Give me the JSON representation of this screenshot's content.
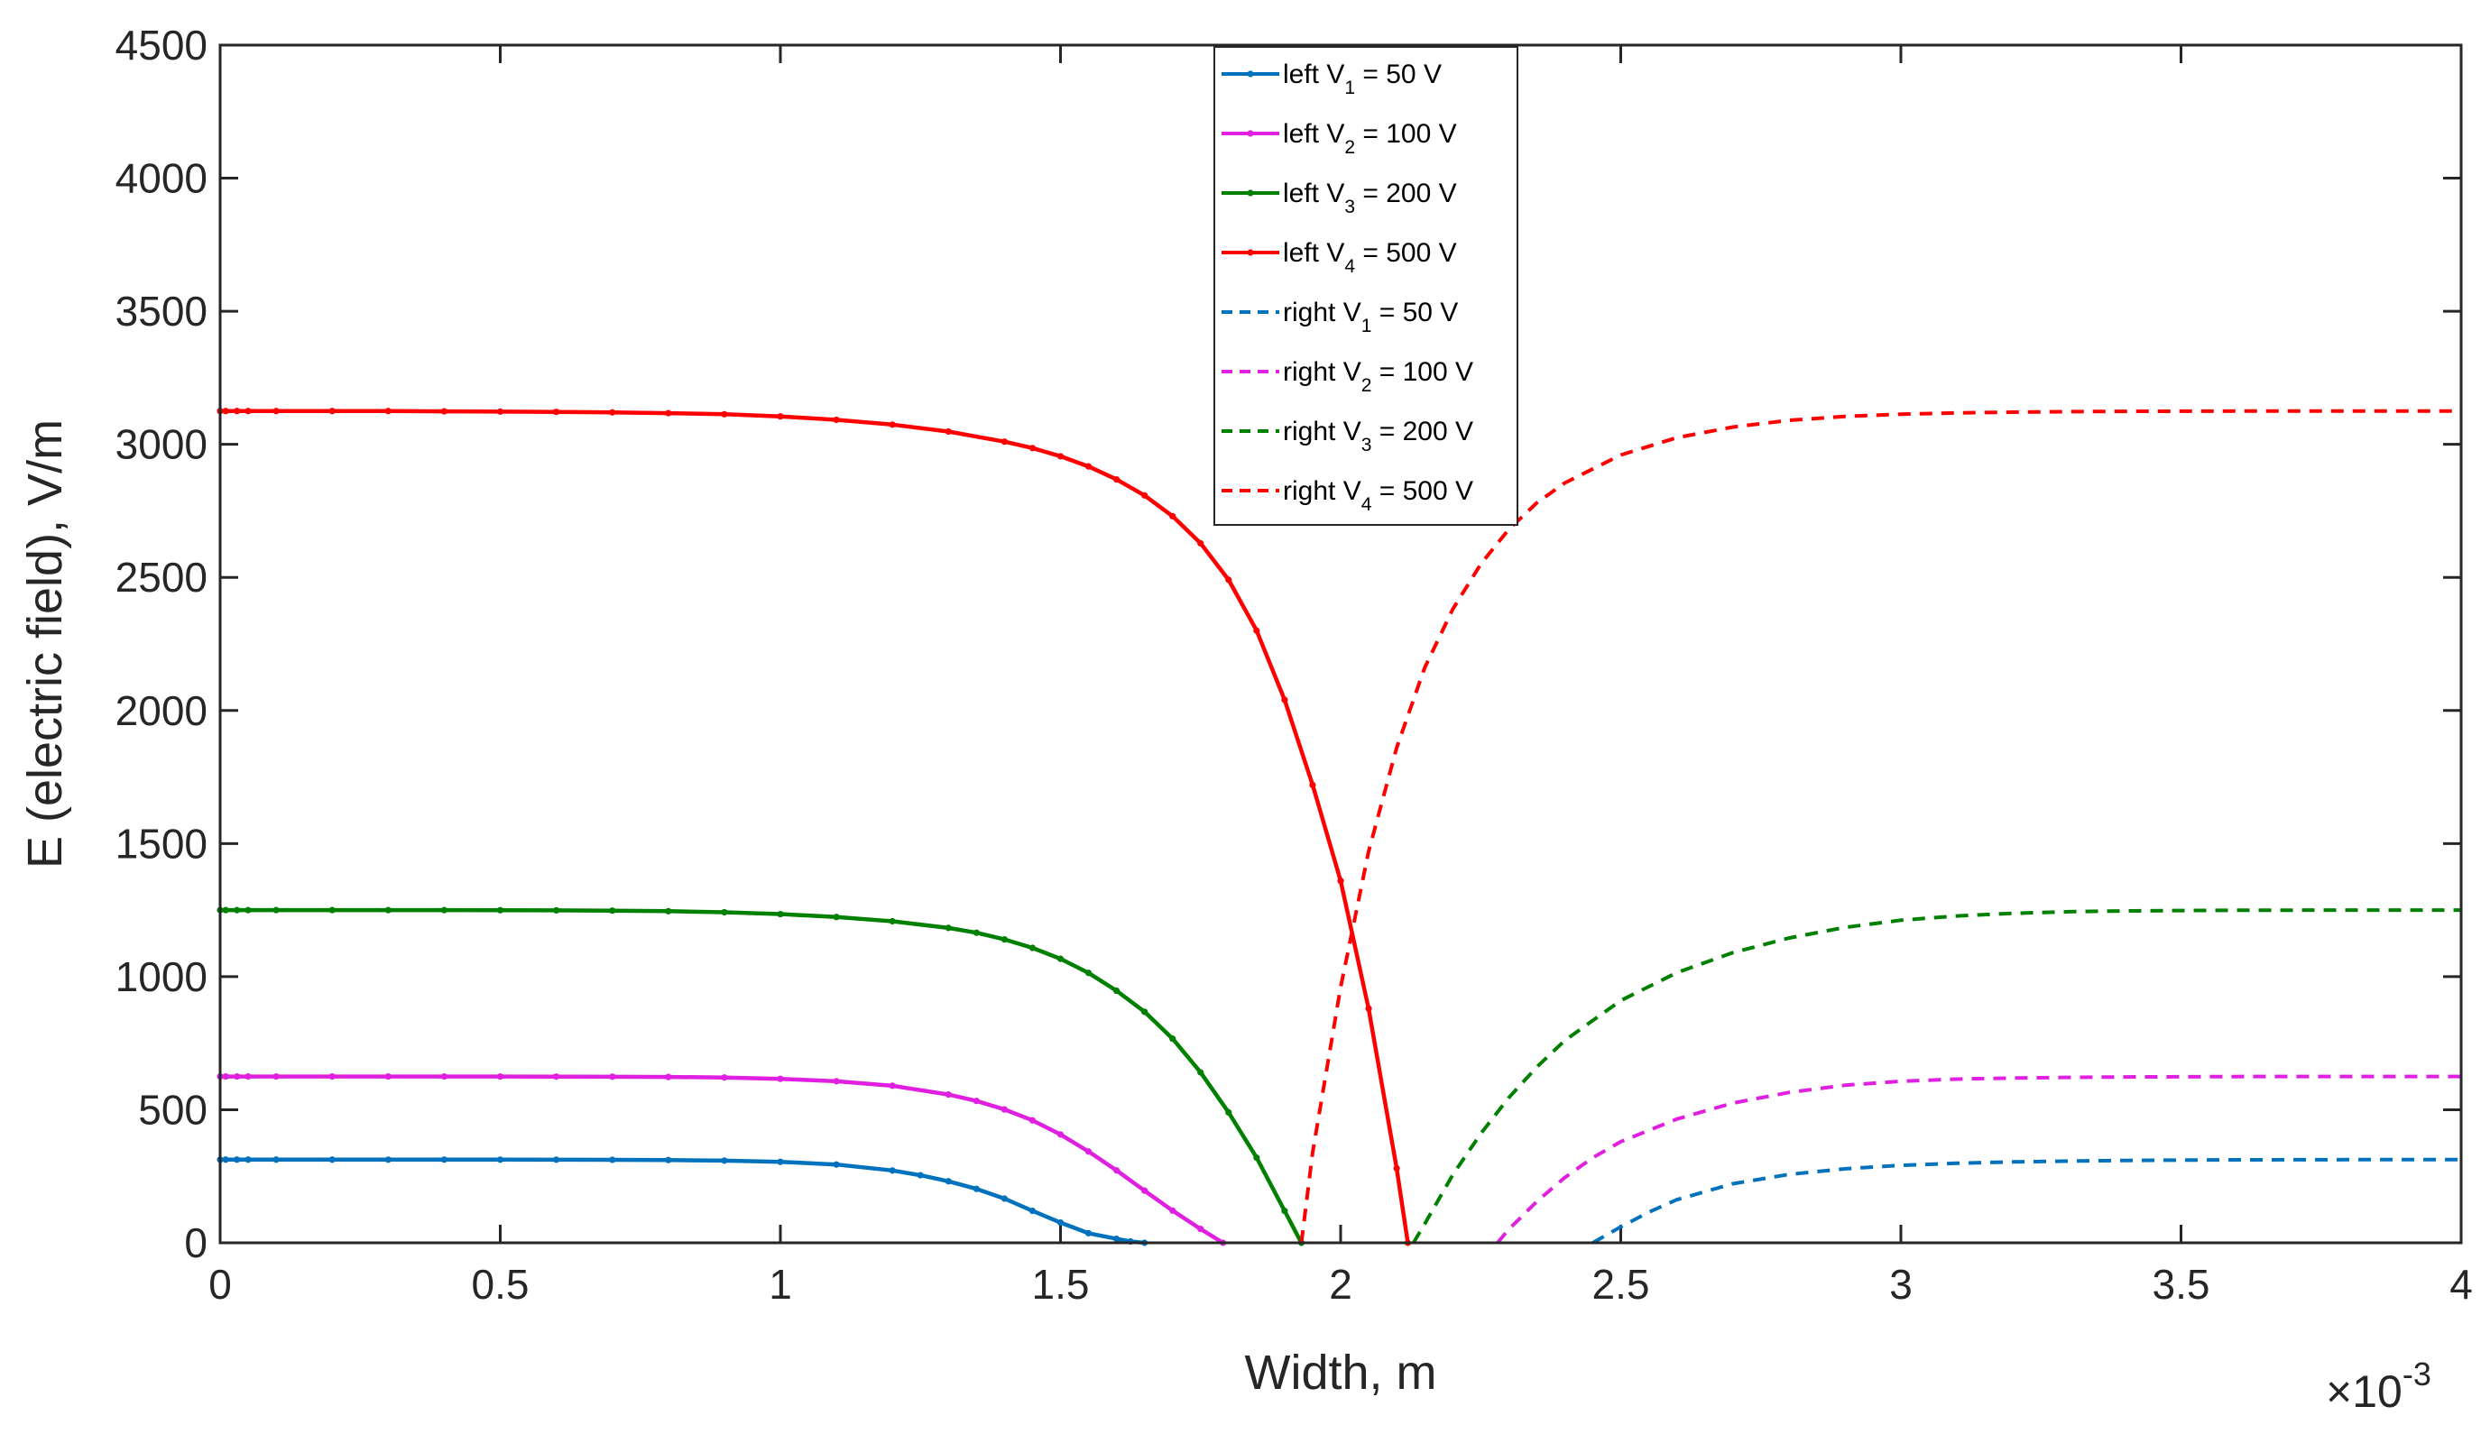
{
  "chart_data": {
    "type": "line",
    "title": "",
    "xlabel": "Width, m",
    "ylabel": "E (electric field), V/m",
    "x_exponent_base": "×10",
    "x_exponent_power": "-3",
    "xlim": [
      0,
      4
    ],
    "ylim": [
      0,
      4500
    ],
    "xticks": [
      "0",
      "0.5",
      "1",
      "1.5",
      "2",
      "2.5",
      "3",
      "3.5",
      "4"
    ],
    "yticks": [
      "0",
      "500",
      "1000",
      "1500",
      "2000",
      "2500",
      "3000",
      "3500",
      "4000",
      "4500"
    ],
    "legend_position": "top-center",
    "series": [
      {
        "name": "left V1 = 50 V",
        "prefix": "left V",
        "sub": "1",
        "suffix": " = 50 V",
        "color": "#0072BD",
        "style": "solid",
        "markers": true,
        "x": [
          0,
          0.01,
          0.03,
          0.05,
          0.1,
          0.2,
          0.3,
          0.4,
          0.5,
          0.6,
          0.7,
          0.8,
          0.9,
          1.0,
          1.1,
          1.2,
          1.25,
          1.3,
          1.35,
          1.4,
          1.45,
          1.5,
          1.55,
          1.6,
          1.625,
          1.65
        ],
        "y": [
          312.5,
          312.5,
          312.5,
          312.5,
          312.5,
          312.5,
          312.4,
          312.4,
          312.3,
          312.2,
          311.8,
          310.9,
          308.8,
          304.2,
          294.0,
          271.6,
          253.7,
          231.2,
          202.5,
          166.0,
          120.0,
          76.0,
          36.0,
          15.0,
          5.0,
          0
        ]
      },
      {
        "name": "left V2 = 100 V",
        "prefix": "left V",
        "sub": "2",
        "suffix": " = 100 V",
        "color": "#E020E0",
        "style": "solid",
        "markers": true,
        "x": [
          0,
          0.01,
          0.03,
          0.05,
          0.1,
          0.2,
          0.3,
          0.4,
          0.5,
          0.6,
          0.7,
          0.8,
          0.9,
          1.0,
          1.1,
          1.2,
          1.3,
          1.35,
          1.4,
          1.45,
          1.5,
          1.55,
          1.6,
          1.65,
          1.7,
          1.75,
          1.79
        ],
        "y": [
          625,
          625,
          625,
          625,
          625,
          625,
          625,
          625,
          624.8,
          624.6,
          624.0,
          623.0,
          621.0,
          616.0,
          607.0,
          590.0,
          557.0,
          533.0,
          501.0,
          460.0,
          407.0,
          343.0,
          272.0,
          196.0,
          121.0,
          52.0,
          0
        ]
      },
      {
        "name": "left V3 = 200 V",
        "prefix": "left V",
        "sub": "3",
        "suffix": " = 200 V",
        "color": "#008000",
        "style": "solid",
        "markers": true,
        "x": [
          0,
          0.01,
          0.03,
          0.05,
          0.1,
          0.2,
          0.3,
          0.4,
          0.5,
          0.6,
          0.7,
          0.8,
          0.9,
          1.0,
          1.1,
          1.2,
          1.3,
          1.35,
          1.4,
          1.45,
          1.5,
          1.55,
          1.6,
          1.65,
          1.7,
          1.75,
          1.8,
          1.85,
          1.9,
          1.93
        ],
        "y": [
          1250,
          1250,
          1250,
          1250,
          1250,
          1250,
          1250,
          1250,
          1249.6,
          1249,
          1248,
          1246,
          1242,
          1235,
          1224,
          1208,
          1183,
          1165,
          1140,
          1108,
          1067,
          1014,
          947,
          868,
          767,
          640,
          490,
          320,
          120,
          0
        ]
      },
      {
        "name": "left V4 = 500 V",
        "prefix": "left V",
        "sub": "4",
        "suffix": " = 500 V",
        "color": "#FF0000",
        "style": "solid",
        "markers": true,
        "x": [
          0,
          0.01,
          0.03,
          0.05,
          0.1,
          0.2,
          0.3,
          0.4,
          0.5,
          0.6,
          0.7,
          0.8,
          0.9,
          1.0,
          1.1,
          1.2,
          1.3,
          1.4,
          1.45,
          1.5,
          1.55,
          1.6,
          1.65,
          1.7,
          1.75,
          1.8,
          1.85,
          1.9,
          1.95,
          2.0,
          2.05,
          2.1,
          2.12
        ],
        "y": [
          3125,
          3125,
          3125,
          3125,
          3125,
          3125,
          3125,
          3124,
          3123,
          3122,
          3120,
          3117,
          3113,
          3105,
          3092,
          3074,
          3048,
          3010,
          2986,
          2955,
          2917,
          2868,
          2808,
          2730,
          2628,
          2491,
          2300,
          2040,
          1720,
          1360,
          880,
          280,
          0
        ]
      },
      {
        "name": "right V1 = 50 V",
        "prefix": "right V",
        "sub": "1",
        "suffix": " = 50 V",
        "color": "#0072BD",
        "style": "dashed",
        "markers": false,
        "x": [
          2.45,
          2.5,
          2.55,
          2.6,
          2.7,
          2.8,
          2.9,
          3.0,
          3.1,
          3.2,
          3.3,
          3.4,
          3.5,
          3.6,
          3.7,
          3.8,
          3.9,
          4.0
        ],
        "y": [
          0,
          60,
          115,
          162,
          222,
          257,
          278,
          291,
          299,
          304,
          307,
          309.5,
          310.8,
          311.6,
          312.0,
          312.3,
          312.4,
          312.5
        ]
      },
      {
        "name": "right V2 = 100 V",
        "prefix": "right V",
        "sub": "2",
        "suffix": " = 100 V",
        "color": "#E020E0",
        "style": "dashed",
        "markers": false,
        "x": [
          2.28,
          2.3,
          2.35,
          2.4,
          2.45,
          2.5,
          2.6,
          2.7,
          2.8,
          2.9,
          3.0,
          3.1,
          3.2,
          3.3,
          3.4,
          3.5,
          3.6,
          3.7,
          3.8,
          3.9,
          4.0
        ],
        "y": [
          0,
          50,
          155,
          245,
          320,
          380,
          465,
          525,
          565,
          592,
          607,
          615,
          619,
          621.5,
          623,
          624,
          624.5,
          624.8,
          625,
          625,
          625
        ]
      },
      {
        "name": "right V3 = 200 V",
        "prefix": "right V",
        "sub": "3",
        "suffix": " = 200 V",
        "color": "#008000",
        "style": "dashed",
        "markers": false,
        "x": [
          2.13,
          2.15,
          2.2,
          2.25,
          2.3,
          2.35,
          2.4,
          2.5,
          2.6,
          2.7,
          2.8,
          2.9,
          3.0,
          3.1,
          3.2,
          3.3,
          3.4,
          3.5,
          3.6,
          3.7,
          3.8,
          3.9,
          4.0
        ],
        "y": [
          0,
          70,
          255,
          410,
          545,
          660,
          760,
          910,
          1015,
          1090,
          1145,
          1185,
          1212,
          1228,
          1238,
          1244,
          1247,
          1248.5,
          1249.3,
          1249.7,
          1250,
          1250,
          1250
        ]
      },
      {
        "name": "right V4 = 500 V",
        "prefix": "right V",
        "sub": "4",
        "suffix": " = 500 V",
        "color": "#FF0000",
        "style": "dashed",
        "markers": false,
        "x": [
          1.93,
          1.95,
          2.0,
          2.05,
          2.1,
          2.15,
          2.2,
          2.25,
          2.3,
          2.35,
          2.4,
          2.5,
          2.6,
          2.7,
          2.8,
          2.9,
          3.0,
          3.1,
          3.2,
          3.3,
          3.4,
          3.5,
          3.6,
          3.7,
          3.8,
          3.9,
          4.0
        ],
        "y": [
          0,
          340,
          960,
          1470,
          1860,
          2160,
          2380,
          2550,
          2680,
          2780,
          2855,
          2960,
          3025,
          3065,
          3090,
          3105,
          3113,
          3118,
          3121,
          3123,
          3124,
          3124.5,
          3125,
          3125,
          3125,
          3125,
          3125
        ]
      }
    ]
  }
}
